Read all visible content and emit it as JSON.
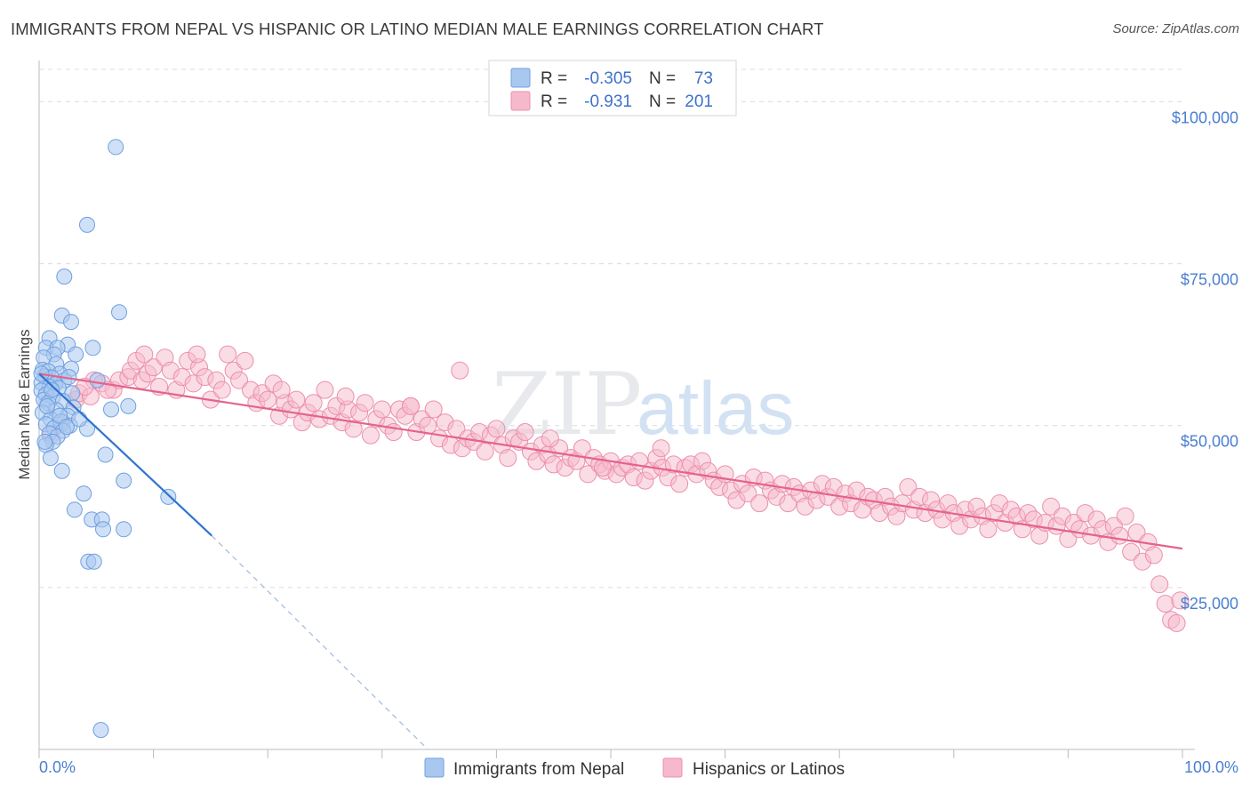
{
  "title": "IMMIGRANTS FROM NEPAL VS HISPANIC OR LATINO MEDIAN MALE EARNINGS CORRELATION CHART",
  "source": "Source: ZipAtlas.com",
  "watermark": {
    "part1": "ZIP",
    "part2": "atlas"
  },
  "legend": {
    "r_label": "R =",
    "n_label": "N =",
    "rows": [
      {
        "r": "-0.305",
        "n": "73"
      },
      {
        "r": "-0.931",
        "n": "201"
      }
    ]
  },
  "colors": {
    "blue_fill": "#a9c8f0",
    "blue_stroke": "#6f9fe0",
    "blue_line": "#2f74d0",
    "pink_fill": "#f6b9cc",
    "pink_stroke": "#ec8fae",
    "pink_line": "#e4638c",
    "grid": "#dcdcdc",
    "tick_text": "#4a7fd0"
  },
  "chart_data": {
    "type": "scatter",
    "title": "IMMIGRANTS FROM NEPAL VS HISPANIC OR LATINO MEDIAN MALE EARNINGS CORRELATION CHART",
    "xlabel": "",
    "ylabel": "Median Male Earnings",
    "xlim": [
      0,
      100
    ],
    "ylim": [
      0,
      105000
    ],
    "x_tick_labels": [
      "0.0%",
      "100.0%"
    ],
    "y_ticks": [
      25000,
      50000,
      75000,
      100000
    ],
    "y_tick_labels": [
      "$25,000",
      "$50,000",
      "$75,000",
      "$100,000"
    ],
    "series": [
      {
        "name": "Immigrants from Nepal",
        "r": -0.305,
        "n": 73,
        "points": [
          [
            6.7,
            93000
          ],
          [
            4.2,
            81000
          ],
          [
            2.2,
            73000
          ],
          [
            2.0,
            67000
          ],
          [
            2.8,
            66000
          ],
          [
            7.0,
            67500
          ],
          [
            0.9,
            63500
          ],
          [
            2.5,
            62500
          ],
          [
            4.7,
            62000
          ],
          [
            0.6,
            62000
          ],
          [
            1.6,
            62000
          ],
          [
            1.3,
            61000
          ],
          [
            3.2,
            61000
          ],
          [
            0.4,
            60500
          ],
          [
            1.5,
            59500
          ],
          [
            2.8,
            58800
          ],
          [
            0.3,
            58600
          ],
          [
            0.8,
            58400
          ],
          [
            1.8,
            58000
          ],
          [
            0.5,
            57600
          ],
          [
            1.1,
            57400
          ],
          [
            2.2,
            57000
          ],
          [
            0.2,
            56600
          ],
          [
            1.4,
            56400
          ],
          [
            0.9,
            56000
          ],
          [
            1.7,
            55800
          ],
          [
            5.1,
            57000
          ],
          [
            0.2,
            55400
          ],
          [
            2.9,
            55000
          ],
          [
            0.6,
            54800
          ],
          [
            1.2,
            54400
          ],
          [
            0.4,
            54000
          ],
          [
            2.1,
            53800
          ],
          [
            0.8,
            53500
          ],
          [
            7.8,
            53000
          ],
          [
            3.0,
            52800
          ],
          [
            1.5,
            52400
          ],
          [
            0.3,
            52000
          ],
          [
            6.3,
            52500
          ],
          [
            2.5,
            51500
          ],
          [
            1.0,
            51000
          ],
          [
            1.9,
            50600
          ],
          [
            0.6,
            50200
          ],
          [
            2.7,
            50000
          ],
          [
            1.3,
            49600
          ],
          [
            4.2,
            49500
          ],
          [
            2.1,
            49200
          ],
          [
            0.9,
            48800
          ],
          [
            1.6,
            48300
          ],
          [
            1.2,
            47500
          ],
          [
            0.6,
            47000
          ],
          [
            5.8,
            45500
          ],
          [
            1.0,
            45000
          ],
          [
            2.0,
            43000
          ],
          [
            7.4,
            41500
          ],
          [
            3.9,
            39500
          ],
          [
            11.3,
            39000
          ],
          [
            3.1,
            37000
          ],
          [
            4.6,
            35500
          ],
          [
            5.5,
            35500
          ],
          [
            5.6,
            34000
          ],
          [
            7.4,
            34000
          ],
          [
            4.3,
            29000
          ],
          [
            4.8,
            29000
          ],
          [
            5.4,
            3000
          ],
          [
            0.2,
            58000
          ],
          [
            0.7,
            53000
          ],
          [
            1.8,
            51500
          ],
          [
            2.4,
            49800
          ],
          [
            0.5,
            47500
          ],
          [
            3.5,
            51000
          ],
          [
            1.1,
            55500
          ],
          [
            2.6,
            57500
          ]
        ]
      },
      {
        "name": "Hispanics or Latinos",
        "r": -0.931,
        "n": 201,
        "points": [
          [
            1.0,
            48500
          ],
          [
            2.0,
            50500
          ],
          [
            3.2,
            54000
          ],
          [
            3.5,
            55000
          ],
          [
            4.5,
            54500
          ],
          [
            4.8,
            57000
          ],
          [
            5.5,
            56500
          ],
          [
            6.5,
            55500
          ],
          [
            7.0,
            57000
          ],
          [
            7.8,
            57500
          ],
          [
            8.0,
            58500
          ],
          [
            8.5,
            60000
          ],
          [
            9.0,
            57000
          ],
          [
            9.5,
            58000
          ],
          [
            10.0,
            59000
          ],
          [
            10.5,
            56000
          ],
          [
            11.0,
            60500
          ],
          [
            11.5,
            58500
          ],
          [
            12.0,
            55500
          ],
          [
            12.5,
            57500
          ],
          [
            13.0,
            60000
          ],
          [
            13.5,
            56500
          ],
          [
            14.0,
            59000
          ],
          [
            14.5,
            57500
          ],
          [
            15.0,
            54000
          ],
          [
            15.5,
            57000
          ],
          [
            16.0,
            55500
          ],
          [
            16.5,
            61000
          ],
          [
            17.0,
            58500
          ],
          [
            17.5,
            57000
          ],
          [
            18.0,
            60000
          ],
          [
            18.5,
            55500
          ],
          [
            19.0,
            53500
          ],
          [
            19.5,
            55000
          ],
          [
            20.0,
            54000
          ],
          [
            20.5,
            56500
          ],
          [
            21.0,
            51500
          ],
          [
            21.5,
            53500
          ],
          [
            22.0,
            52500
          ],
          [
            22.5,
            54000
          ],
          [
            23.0,
            50500
          ],
          [
            23.5,
            52000
          ],
          [
            24.0,
            53500
          ],
          [
            24.5,
            51000
          ],
          [
            25.0,
            55500
          ],
          [
            25.5,
            51500
          ],
          [
            26.0,
            53000
          ],
          [
            26.5,
            50500
          ],
          [
            27.0,
            52500
          ],
          [
            27.5,
            49500
          ],
          [
            28.0,
            52000
          ],
          [
            28.5,
            53500
          ],
          [
            29.0,
            48500
          ],
          [
            29.5,
            51000
          ],
          [
            30.0,
            52500
          ],
          [
            30.5,
            50000
          ],
          [
            31.0,
            49000
          ],
          [
            31.5,
            52500
          ],
          [
            32.0,
            51500
          ],
          [
            32.5,
            53000
          ],
          [
            33.0,
            49000
          ],
          [
            33.5,
            51000
          ],
          [
            34.0,
            50000
          ],
          [
            34.5,
            52500
          ],
          [
            35.0,
            48000
          ],
          [
            35.5,
            50500
          ],
          [
            36.0,
            47000
          ],
          [
            36.5,
            49500
          ],
          [
            37.0,
            46500
          ],
          [
            37.5,
            48000
          ],
          [
            38.0,
            47500
          ],
          [
            38.5,
            49000
          ],
          [
            39.0,
            46000
          ],
          [
            39.5,
            48500
          ],
          [
            40.0,
            49500
          ],
          [
            40.5,
            47000
          ],
          [
            41.0,
            45000
          ],
          [
            41.5,
            48000
          ],
          [
            42.0,
            47500
          ],
          [
            42.5,
            49000
          ],
          [
            43.0,
            46000
          ],
          [
            43.5,
            44500
          ],
          [
            44.0,
            47000
          ],
          [
            44.5,
            45500
          ],
          [
            45.0,
            44000
          ],
          [
            45.5,
            46500
          ],
          [
            46.0,
            43500
          ],
          [
            46.5,
            45000
          ],
          [
            47.0,
            44500
          ],
          [
            47.5,
            46500
          ],
          [
            48.0,
            42500
          ],
          [
            48.5,
            45000
          ],
          [
            49.0,
            44000
          ],
          [
            49.5,
            43000
          ],
          [
            50.0,
            44500
          ],
          [
            50.5,
            42500
          ],
          [
            51.0,
            43500
          ],
          [
            51.5,
            44000
          ],
          [
            52.0,
            42000
          ],
          [
            52.5,
            44500
          ],
          [
            53.0,
            41500
          ],
          [
            53.5,
            43000
          ],
          [
            54.0,
            45000
          ],
          [
            54.5,
            43500
          ],
          [
            55.0,
            42000
          ],
          [
            55.5,
            44000
          ],
          [
            56.0,
            41000
          ],
          [
            56.5,
            43500
          ],
          [
            57.0,
            44000
          ],
          [
            57.5,
            42500
          ],
          [
            58.0,
            44500
          ],
          [
            58.5,
            43000
          ],
          [
            59.0,
            41500
          ],
          [
            59.5,
            40500
          ],
          [
            60.0,
            42500
          ],
          [
            60.5,
            40000
          ],
          [
            61.0,
            38500
          ],
          [
            61.5,
            41000
          ],
          [
            62.0,
            39500
          ],
          [
            62.5,
            42000
          ],
          [
            63.0,
            38000
          ],
          [
            63.5,
            41500
          ],
          [
            64.0,
            40000
          ],
          [
            64.5,
            39000
          ],
          [
            65.0,
            41000
          ],
          [
            65.5,
            38000
          ],
          [
            66.0,
            40500
          ],
          [
            66.5,
            39500
          ],
          [
            67.0,
            37500
          ],
          [
            67.5,
            40000
          ],
          [
            68.0,
            38500
          ],
          [
            68.5,
            41000
          ],
          [
            69.0,
            39000
          ],
          [
            69.5,
            40500
          ],
          [
            70.0,
            37500
          ],
          [
            70.5,
            39500
          ],
          [
            71.0,
            38000
          ],
          [
            71.5,
            40000
          ],
          [
            72.0,
            37000
          ],
          [
            72.5,
            39000
          ],
          [
            73.0,
            38500
          ],
          [
            73.5,
            36500
          ],
          [
            74.0,
            39000
          ],
          [
            74.5,
            37500
          ],
          [
            75.0,
            36000
          ],
          [
            75.5,
            38000
          ],
          [
            76.0,
            40500
          ],
          [
            76.5,
            37000
          ],
          [
            77.0,
            39000
          ],
          [
            77.5,
            36500
          ],
          [
            78.0,
            38500
          ],
          [
            78.5,
            37000
          ],
          [
            79.0,
            35500
          ],
          [
            79.5,
            38000
          ],
          [
            80.0,
            36500
          ],
          [
            80.5,
            34500
          ],
          [
            81.0,
            37000
          ],
          [
            81.5,
            35500
          ],
          [
            82.0,
            37500
          ],
          [
            82.5,
            36000
          ],
          [
            83.0,
            34000
          ],
          [
            83.5,
            36500
          ],
          [
            84.0,
            38000
          ],
          [
            84.5,
            35000
          ],
          [
            85.0,
            37000
          ],
          [
            85.5,
            36000
          ],
          [
            86.0,
            34000
          ],
          [
            86.5,
            36500
          ],
          [
            87.0,
            35500
          ],
          [
            87.5,
            33000
          ],
          [
            88.0,
            35000
          ],
          [
            88.5,
            37500
          ],
          [
            89.0,
            34500
          ],
          [
            89.5,
            36000
          ],
          [
            90.0,
            32500
          ],
          [
            90.5,
            35000
          ],
          [
            91.0,
            34000
          ],
          [
            91.5,
            36500
          ],
          [
            92.0,
            33000
          ],
          [
            92.5,
            35500
          ],
          [
            93.0,
            34000
          ],
          [
            93.5,
            32000
          ],
          [
            94.0,
            34500
          ],
          [
            94.5,
            33000
          ],
          [
            95.0,
            36000
          ],
          [
            95.5,
            30500
          ],
          [
            96.0,
            33500
          ],
          [
            96.5,
            29000
          ],
          [
            97.0,
            32000
          ],
          [
            97.5,
            30000
          ],
          [
            98.0,
            25500
          ],
          [
            98.5,
            22500
          ],
          [
            99.0,
            20000
          ],
          [
            99.5,
            19500
          ],
          [
            99.8,
            23000
          ],
          [
            4.0,
            56000
          ],
          [
            6.0,
            55500
          ],
          [
            9.2,
            61000
          ],
          [
            13.8,
            61000
          ],
          [
            21.2,
            55500
          ],
          [
            26.8,
            54500
          ],
          [
            32.5,
            53000
          ],
          [
            36.8,
            58500
          ],
          [
            44.7,
            48000
          ],
          [
            49.3,
            43500
          ],
          [
            54.4,
            46500
          ]
        ]
      }
    ],
    "trend_lines": [
      {
        "series": "Immigrants from Nepal",
        "solid": [
          [
            0.0,
            58000
          ],
          [
            15.1,
            33000
          ]
        ],
        "dashed": [
          [
            15.1,
            33000
          ],
          [
            34.0,
            0
          ]
        ]
      },
      {
        "series": "Hispanics or Latinos",
        "solid": [
          [
            0.0,
            58000
          ],
          [
            100.0,
            31000
          ]
        ]
      }
    ],
    "grid": true,
    "legend_position": "top-center"
  },
  "bottom_legend": {
    "items": [
      "Immigrants from Nepal",
      "Hispanics or Latinos"
    ]
  }
}
